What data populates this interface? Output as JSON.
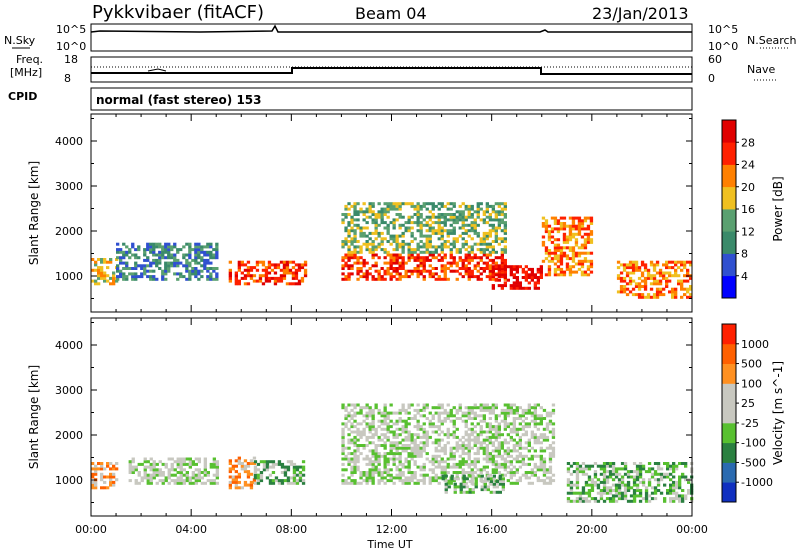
{
  "header": {
    "station": "Pykkvibaer (fitACF)",
    "beam": "Beam 04",
    "date": "23/Jan/2013"
  },
  "summary": {
    "nsky_label": "N.Sky",
    "nsearch_label": "N.Search",
    "freq_label_1": "Freq.",
    "freq_label_2": "[MHz]",
    "nave_label": "Nave",
    "cpid_label": "CPID",
    "cpid_text": "normal (fast stereo) 153",
    "noise_ticks_left": [
      "10^5",
      "10^0"
    ],
    "noise_ticks_right": [
      "10^5",
      "10^0"
    ],
    "freq_ticks": [
      "18",
      "8"
    ],
    "nave_ticks": [
      "60",
      "0"
    ]
  },
  "chart_data": [
    {
      "type": "heatmap",
      "panel": "power",
      "ylabel": "Slant Range [km]",
      "xlabel": "Time UT",
      "yticks": [
        1000,
        2000,
        3000,
        4000
      ],
      "ylim": [
        200,
        4600
      ],
      "xticks": [
        "00:00",
        "04:00",
        "08:00",
        "12:00",
        "16:00",
        "20:00",
        "00:00"
      ],
      "xlim_hours": [
        0,
        24
      ],
      "colorbar": {
        "label": "Power [dB]",
        "ticks": [
          "4",
          "8",
          "12",
          "16",
          "20",
          "24",
          "28"
        ],
        "colors": [
          "#0000ff",
          "#3050d0",
          "#3a8a6a",
          "#5aa070",
          "#f0c020",
          "#ff8000",
          "#ff2000",
          "#e00000"
        ]
      },
      "echo_regions": [
        {
          "t0": 0.0,
          "t1": 1.0,
          "r0": 800,
          "r1": 1400,
          "level": 4
        },
        {
          "t0": 1.0,
          "t1": 5.0,
          "r0": 900,
          "r1": 1700,
          "level": 2
        },
        {
          "t0": 5.5,
          "t1": 8.5,
          "r0": 800,
          "r1": 1300,
          "level": 6
        },
        {
          "t0": 10.0,
          "t1": 16.5,
          "r0": 900,
          "r1": 1500,
          "level": 6
        },
        {
          "t0": 10.0,
          "t1": 16.5,
          "r0": 1500,
          "r1": 2600,
          "level": 3
        },
        {
          "t0": 16.0,
          "t1": 18.0,
          "r0": 700,
          "r1": 1200,
          "level": 7
        },
        {
          "t0": 18.0,
          "t1": 20.0,
          "r0": 1000,
          "r1": 2300,
          "level": 5
        },
        {
          "t0": 21.0,
          "t1": 24.0,
          "r0": 500,
          "r1": 1300,
          "level": 5
        }
      ]
    },
    {
      "type": "heatmap",
      "panel": "velocity",
      "ylabel": "Slant Range [km]",
      "xlabel": "Time UT",
      "yticks": [
        1000,
        2000,
        3000,
        4000
      ],
      "ylim": [
        200,
        4600
      ],
      "xticks": [
        "00:00",
        "04:00",
        "08:00",
        "12:00",
        "16:00",
        "20:00",
        "00:00"
      ],
      "xlim_hours": [
        0,
        24
      ],
      "colorbar": {
        "label": "Velocity [m s^-1]",
        "ticks": [
          "1000",
          "500",
          "100",
          "25",
          "-25",
          "-100",
          "-500",
          "-1000"
        ],
        "colors": [
          "#1030c0",
          "#2a6ab0",
          "#2a8040",
          "#58c030",
          "#c8c8c0",
          "#c8c8c0",
          "#ff9020",
          "#ff6000",
          "#ff2000"
        ]
      },
      "echo_regions": [
        {
          "t0": 0.0,
          "t1": 1.0,
          "r0": 800,
          "r1": 1400,
          "level": 6
        },
        {
          "t0": 1.5,
          "t1": 5.0,
          "r0": 900,
          "r1": 1500,
          "level": 4
        },
        {
          "t0": 5.5,
          "t1": 6.5,
          "r0": 800,
          "r1": 1500,
          "level": 6
        },
        {
          "t0": 6.5,
          "t1": 8.5,
          "r0": 900,
          "r1": 1400,
          "level": 3
        },
        {
          "t0": 10.0,
          "t1": 18.5,
          "r0": 900,
          "r1": 2700,
          "level": 4
        },
        {
          "t0": 14.0,
          "t1": 16.5,
          "r0": 700,
          "r1": 1100,
          "level": 3
        },
        {
          "t0": 19.0,
          "t1": 24.0,
          "r0": 500,
          "r1": 1400,
          "level": 3
        }
      ]
    }
  ]
}
